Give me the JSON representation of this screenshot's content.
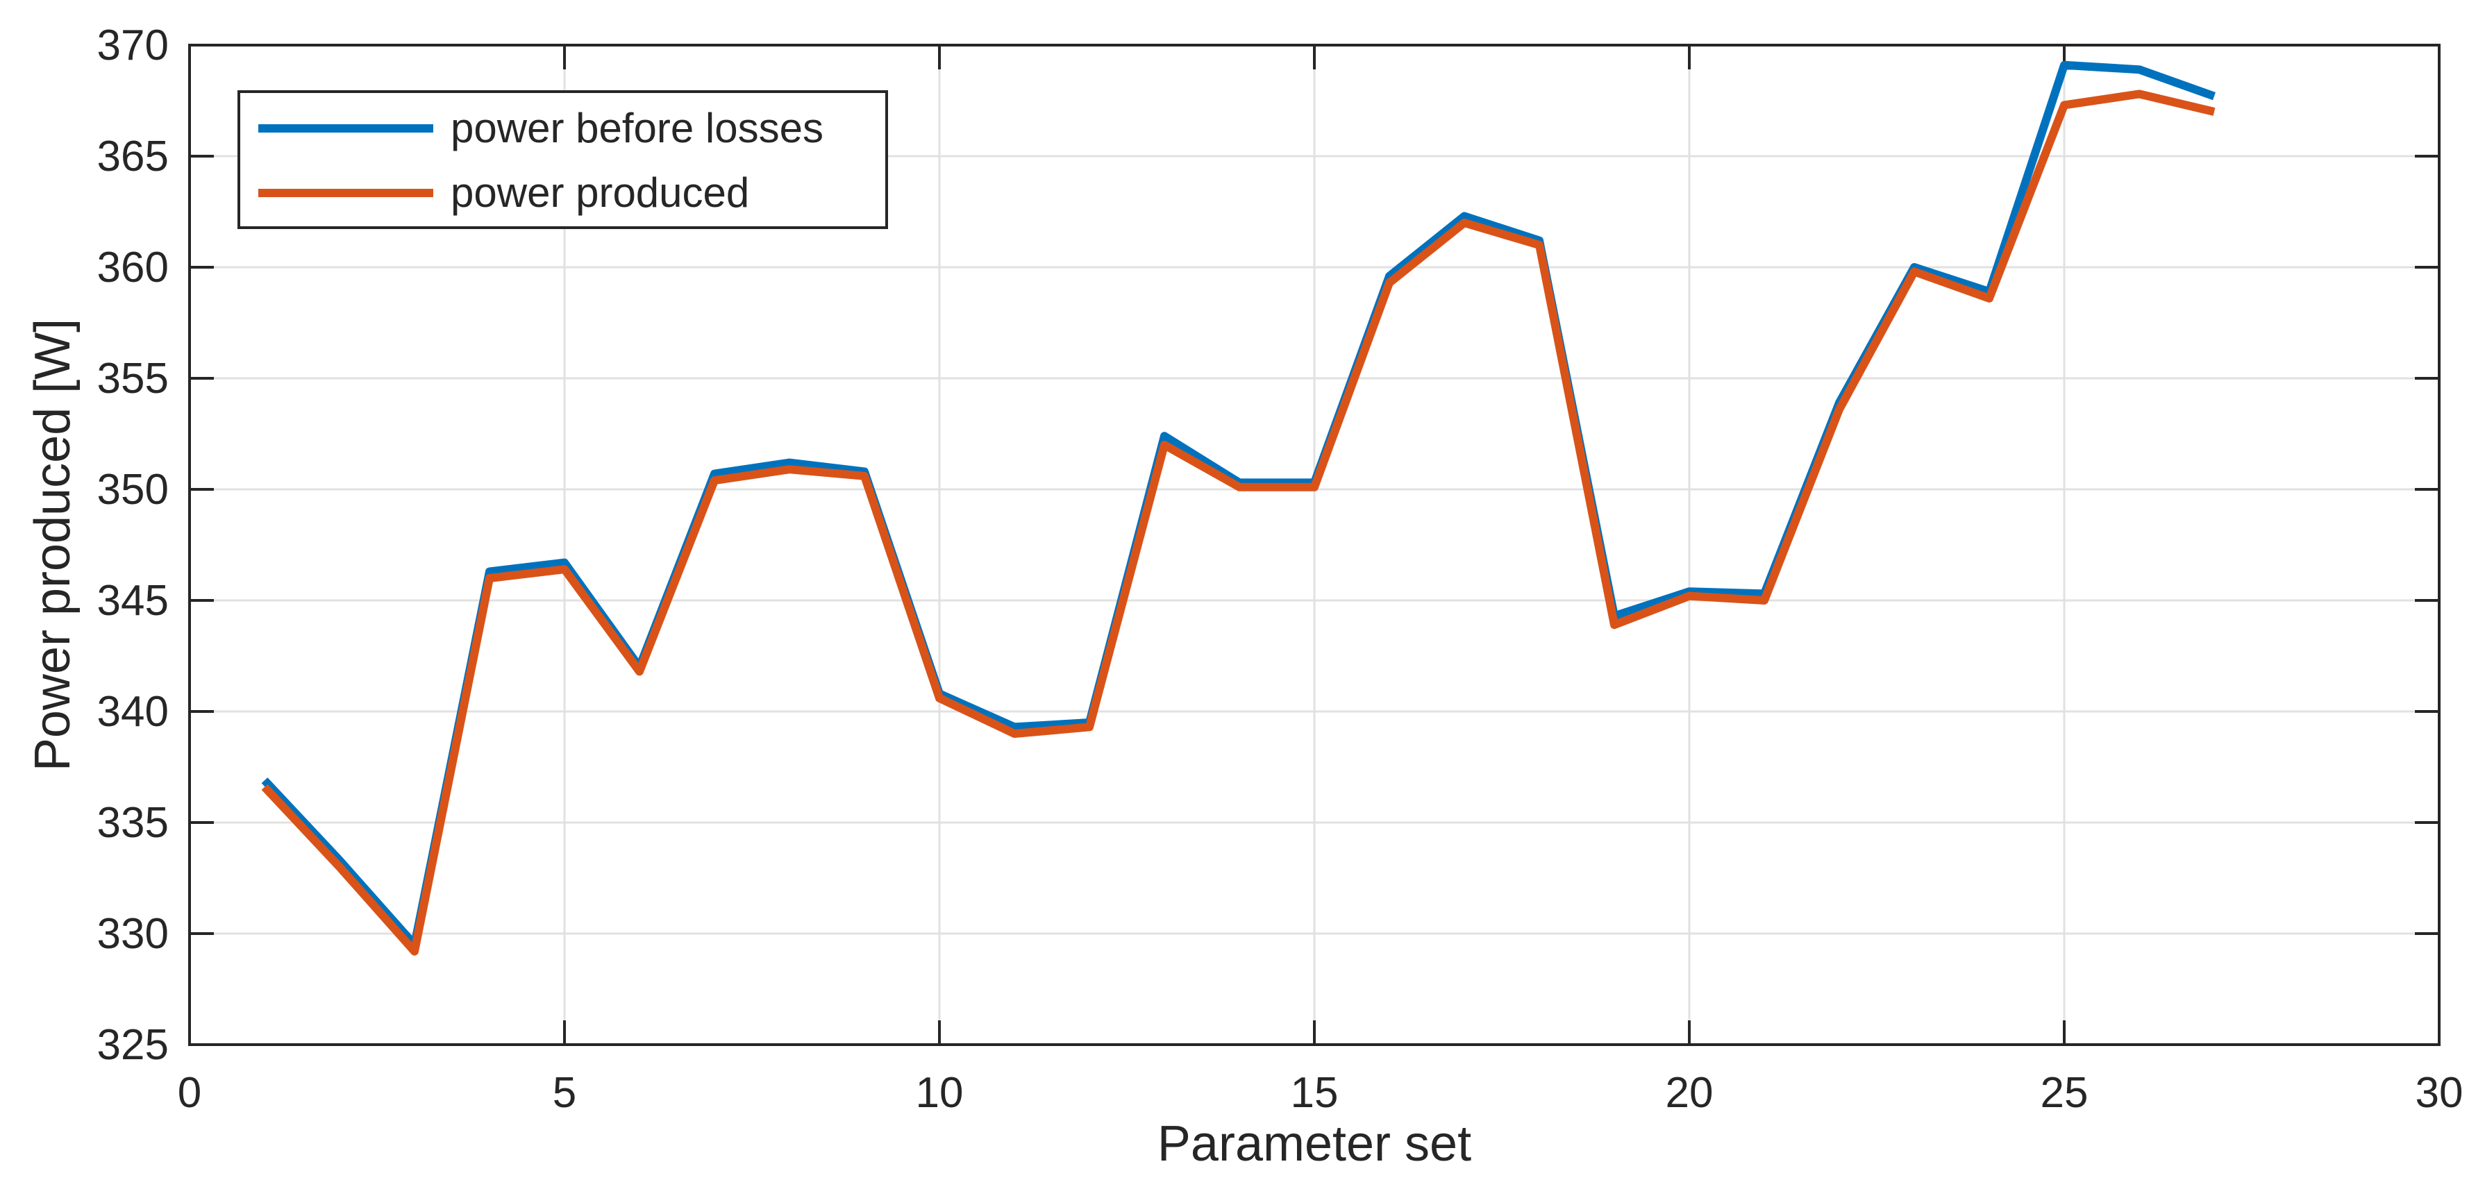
{
  "chart_data": {
    "type": "line",
    "title": "",
    "xlabel": "Parameter set",
    "ylabel": "Power produced [W]",
    "xlim": [
      0,
      30
    ],
    "ylim": [
      325,
      370
    ],
    "x_ticks": [
      0,
      5,
      10,
      15,
      20,
      25,
      30
    ],
    "y_ticks": [
      325,
      330,
      335,
      340,
      345,
      350,
      355,
      360,
      365,
      370
    ],
    "grid": true,
    "legend_position": "top-left",
    "x": [
      1,
      2,
      3,
      4,
      5,
      6,
      7,
      8,
      9,
      10,
      11,
      12,
      13,
      14,
      15,
      16,
      17,
      18,
      19,
      20,
      21,
      22,
      23,
      24,
      25,
      26,
      27
    ],
    "series": [
      {
        "name": "power before losses",
        "color": "#0072BD",
        "values": [
          336.9,
          333.3,
          329.5,
          346.3,
          346.7,
          342.0,
          350.7,
          351.2,
          350.8,
          340.8,
          339.3,
          339.5,
          352.4,
          350.3,
          350.3,
          359.6,
          362.3,
          361.2,
          344.3,
          345.4,
          345.3,
          353.9,
          360.0,
          358.9,
          369.1,
          368.9,
          367.7
        ]
      },
      {
        "name": "power produced",
        "color": "#D95319",
        "values": [
          336.6,
          333.0,
          329.2,
          346.0,
          346.4,
          341.8,
          350.4,
          350.9,
          350.6,
          340.6,
          339.0,
          339.3,
          352.0,
          350.1,
          350.1,
          359.3,
          362.0,
          361.0,
          343.9,
          345.2,
          345.0,
          353.6,
          359.8,
          358.6,
          367.3,
          367.8,
          367.0
        ]
      }
    ],
    "colors": {
      "grid": "#E1E1E1",
      "axis": "#262626",
      "background": "#FFFFFF"
    }
  }
}
